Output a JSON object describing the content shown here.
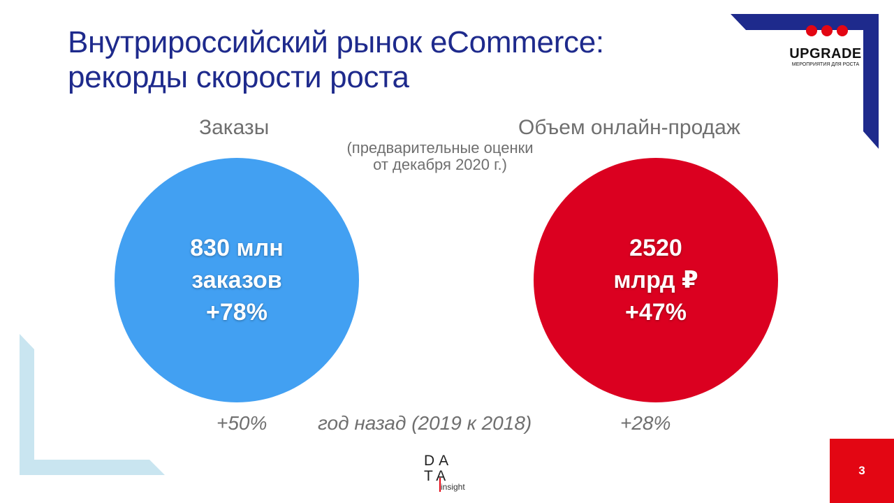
{
  "slide": {
    "title_line1": "Внутрироссийский рынок eCommerce:",
    "title_line2": "рекорды скорости роста",
    "orders": {
      "heading": "Заказы",
      "line1": "830 млн",
      "line2": "заказов",
      "line3": "+78%",
      "prev_growth": "+50%"
    },
    "sales": {
      "heading": "Объем онлайн-продаж",
      "line1": "2520",
      "line2": "млрд ₽",
      "line3": "+47%",
      "prev_growth": "+28%"
    },
    "note_line1": "(предварительные оценки",
    "note_line2": "от декабря 2020 г.)",
    "year_ago": "год назад (2019 к 2018)",
    "page_number": "3"
  },
  "logos": {
    "upgrade_name": "UPGRADE",
    "upgrade_tagline": "МЕРОПРИЯТИЯ ДЛЯ РОСТА",
    "datainsight_da": "DA",
    "datainsight_ta": "TA",
    "datainsight_insight": "insight"
  },
  "colors": {
    "title": "#1e2a8c",
    "blue_circle": "#42a0f2",
    "red_circle": "#db0020",
    "accent_red": "#e30613",
    "navy": "#1e2a8c",
    "light_blue": "#c9e5f0"
  }
}
